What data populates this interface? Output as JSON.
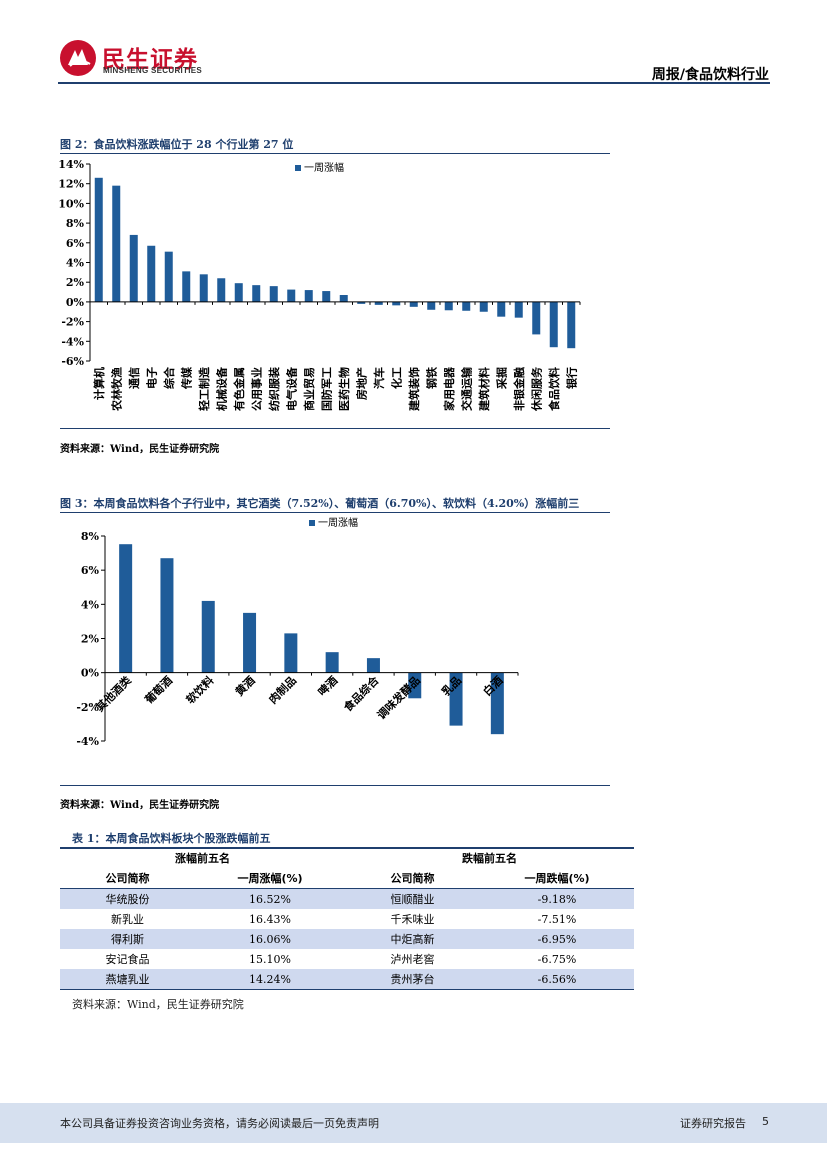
{
  "header": {
    "brand_cn": "民生证券",
    "brand_en": "MINSHENG SECURITIES",
    "report_type": "周报/食品饮料行业"
  },
  "figure2": {
    "title": "图 2：食品饮料涨跌幅位于 28 个行业第 27 位",
    "source": "资料来源：Wind，民生证券研究院"
  },
  "figure3": {
    "title": "图 3：本周食品饮料各个子行业中，其它酒类（7.52%）、葡萄酒（6.70%）、软饮料（4.20%）涨幅前三",
    "source": "资料来源：Wind，民生证券研究院"
  },
  "table1": {
    "title": "表 1：本周食品饮料板块个股涨跌幅前五",
    "group_up": "涨幅前五名",
    "group_down": "跌幅前五名",
    "col_name": "公司简称",
    "col_up": "一周涨幅(%)",
    "col_down": "一周跌幅(%)",
    "rows": [
      {
        "up_name": "华统股份",
        "up_val": "16.52%",
        "down_name": "恒顺醋业",
        "down_val": "-9.18%"
      },
      {
        "up_name": "新乳业",
        "up_val": "16.43%",
        "down_name": "千禾味业",
        "down_val": "-7.51%"
      },
      {
        "up_name": "得利斯",
        "up_val": "16.06%",
        "down_name": "中炬高新",
        "down_val": "-6.95%"
      },
      {
        "up_name": "安记食品",
        "up_val": "15.10%",
        "down_name": "泸州老窖",
        "down_val": "-6.75%"
      },
      {
        "up_name": "燕塘乳业",
        "up_val": "14.24%",
        "down_name": "贵州茅台",
        "down_val": "-6.56%"
      }
    ],
    "source": "资料来源：Wind，民生证券研究院"
  },
  "footer": {
    "disclaimer": "本公司具备证券投资咨询业务资格，请务必阅读最后一页免责声明",
    "doc_type": "证券研究报告",
    "page": "5"
  },
  "colors": {
    "bar": "#1f5c99",
    "accent": "#1f3f6e",
    "brand_red": "#c8102e",
    "table_shade": "#cfd9ef",
    "footer_bg": "#d6e0ef"
  },
  "chart_data": [
    {
      "type": "bar",
      "legend": "一周涨幅",
      "legend_position": "top-center",
      "ylim": [
        -6,
        14
      ],
      "yticks": [
        -6,
        -4,
        -2,
        0,
        2,
        4,
        6,
        8,
        10,
        12,
        14
      ],
      "ytick_format": "percent",
      "grid": false,
      "categories": [
        "计算机",
        "农林牧渔",
        "通信",
        "电子",
        "综合",
        "传媒",
        "轻工制造",
        "机械设备",
        "有色金属",
        "公用事业",
        "纺织服装",
        "电气设备",
        "商业贸易",
        "国防军工",
        "医药生物",
        "房地产",
        "汽车",
        "化工",
        "建筑装饰",
        "钢铁",
        "家用电器",
        "交通运输",
        "建筑材料",
        "采掘",
        "非银金融",
        "休闲服务",
        "食品饮料",
        "银行"
      ],
      "values": [
        12.6,
        11.8,
        6.8,
        5.7,
        5.1,
        3.1,
        2.8,
        2.4,
        1.9,
        1.7,
        1.6,
        1.25,
        1.2,
        1.1,
        0.7,
        -0.2,
        -0.3,
        -0.35,
        -0.5,
        -0.8,
        -0.85,
        -0.9,
        -1.0,
        -1.5,
        -1.6,
        -3.3,
        -4.6,
        -4.7
      ]
    },
    {
      "type": "bar",
      "legend": "一周涨幅",
      "legend_position": "top-center",
      "ylim": [
        -4,
        8
      ],
      "yticks": [
        -4,
        -2,
        0,
        2,
        4,
        6,
        8
      ],
      "ytick_format": "percent",
      "grid": false,
      "categories": [
        "其他酒类",
        "葡萄酒",
        "软饮料",
        "黄酒",
        "肉制品",
        "啤酒",
        "食品综合",
        "调味发酵品",
        "乳品",
        "白酒"
      ],
      "values": [
        7.52,
        6.7,
        4.2,
        3.5,
        2.3,
        1.2,
        0.85,
        -1.5,
        -3.1,
        -3.6
      ]
    }
  ]
}
